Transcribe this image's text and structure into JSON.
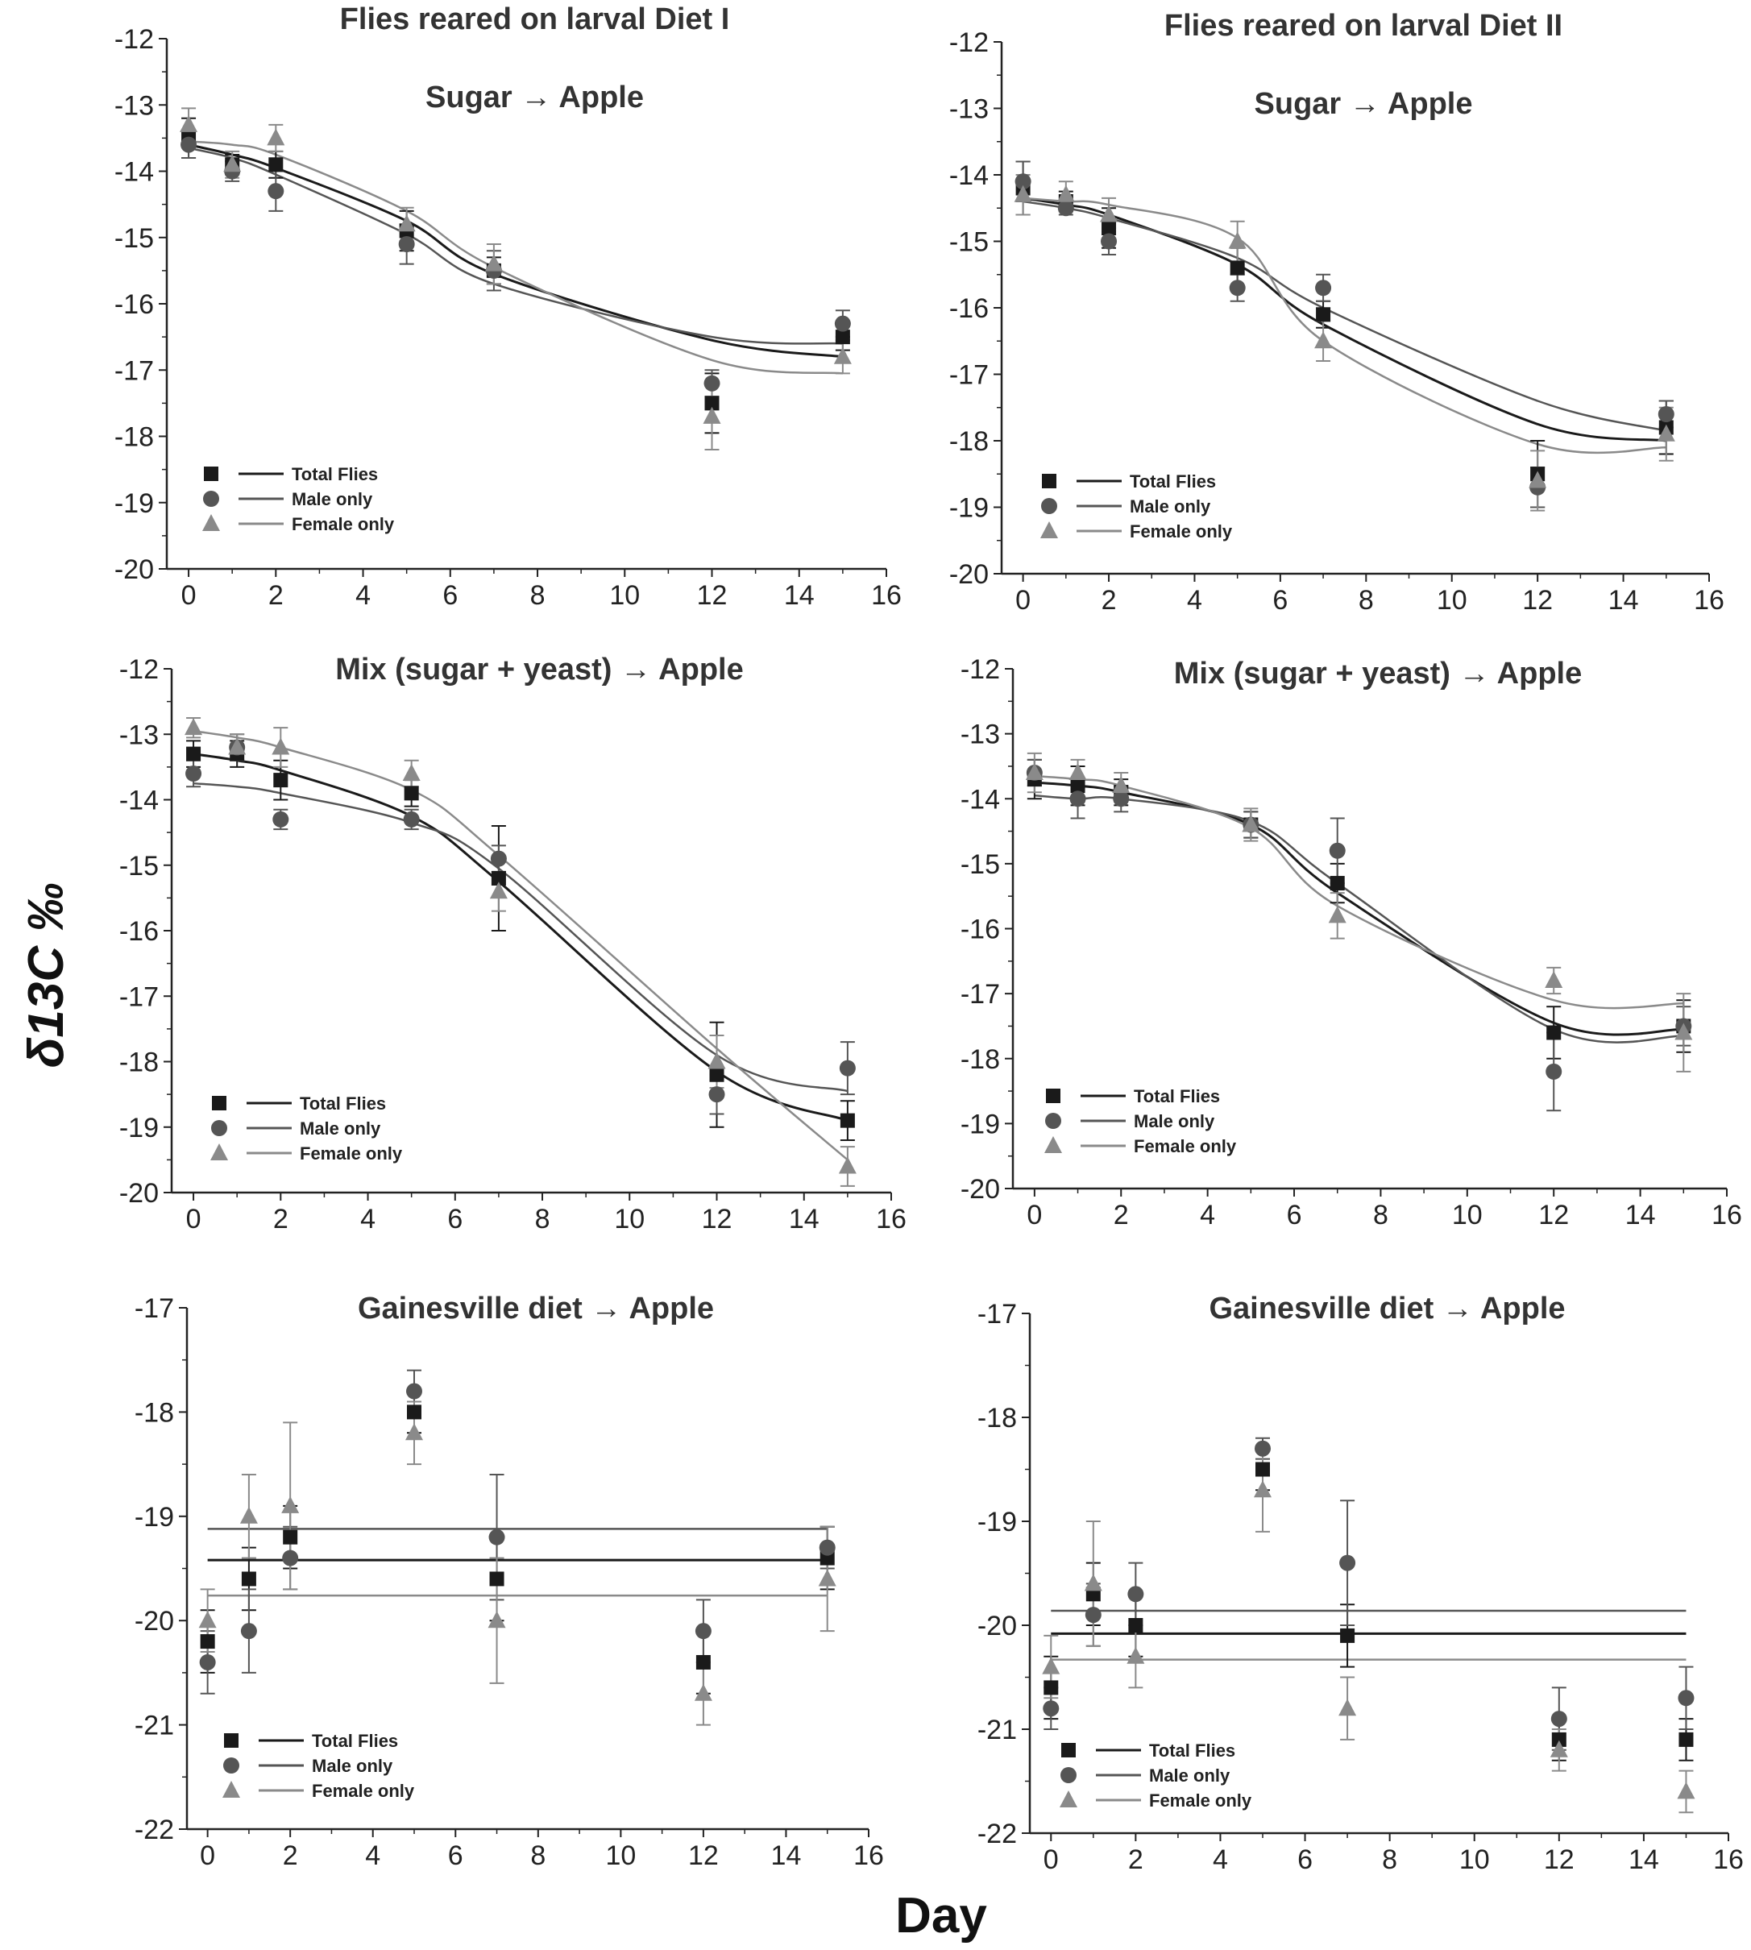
{
  "figure": {
    "ylabel": "δ13C ‰",
    "xlabel": "Day"
  },
  "chart_data": [
    {
      "type": "scatter",
      "title": "Flies reared on larval Diet I",
      "subtitle": "Sugar → Apple",
      "xlim": [
        -0.5,
        16
      ],
      "ylim": [
        -20,
        -12
      ],
      "xticks": [
        "0",
        "2",
        "4",
        "6",
        "8",
        "10",
        "12",
        "14",
        "16"
      ],
      "yticks": [
        "-12",
        "-13",
        "-14",
        "-15",
        "-16",
        "-17",
        "-18",
        "-19",
        "-20"
      ],
      "x": [
        0,
        1,
        2,
        5,
        7,
        12,
        15
      ],
      "series": [
        {
          "name": "Total Flies",
          "marker": "square",
          "color": "#1a1a1a",
          "values": [
            -13.5,
            -13.9,
            -13.9,
            -14.9,
            -15.5,
            -17.5,
            -16.5
          ],
          "errors": [
            0.3,
            0.15,
            0.2,
            0.3,
            0.2,
            0.45,
            0.2
          ],
          "fit": [
            -13.6,
            -13.75,
            -13.95,
            -14.75,
            -15.55,
            -16.55,
            -16.8
          ]
        },
        {
          "name": "Male only",
          "marker": "circle",
          "color": "#555555",
          "values": [
            -13.6,
            -14.0,
            -14.3,
            -15.1,
            -15.5,
            -17.2,
            -16.3
          ],
          "errors": [
            0.2,
            0.15,
            0.3,
            0.3,
            0.3,
            0.2,
            0.2
          ],
          "fit": [
            -13.65,
            -13.8,
            -14.05,
            -14.95,
            -15.7,
            -16.5,
            -16.6
          ]
        },
        {
          "name": "Female only",
          "marker": "triangle",
          "color": "#8a8a8a",
          "values": [
            -13.3,
            -13.9,
            -13.5,
            -14.8,
            -15.4,
            -17.7,
            -16.8
          ],
          "errors": [
            0.25,
            0.2,
            0.2,
            0.25,
            0.3,
            0.5,
            0.25
          ],
          "fit": [
            -13.55,
            -13.6,
            -13.75,
            -14.6,
            -15.45,
            -16.85,
            -17.05
          ]
        }
      ]
    },
    {
      "type": "scatter",
      "title": "Flies reared on larval Diet II",
      "subtitle": "Sugar → Apple",
      "xlim": [
        -0.5,
        16
      ],
      "ylim": [
        -20,
        -12
      ],
      "xticks": [
        "0",
        "2",
        "4",
        "6",
        "8",
        "10",
        "12",
        "14",
        "16"
      ],
      "yticks": [
        "-12",
        "-13",
        "-14",
        "-15",
        "-16",
        "-17",
        "-18",
        "-19",
        "-20"
      ],
      "x": [
        0,
        1,
        2,
        5,
        7,
        12,
        15
      ],
      "series": [
        {
          "name": "Total Flies",
          "marker": "square",
          "color": "#1a1a1a",
          "values": [
            -14.2,
            -14.4,
            -14.8,
            -15.4,
            -16.1,
            -18.5,
            -17.8
          ],
          "errors": [
            0.4,
            0.15,
            0.3,
            0.3,
            0.2,
            0.5,
            0.4
          ],
          "fit": [
            -14.35,
            -14.45,
            -14.6,
            -15.35,
            -16.25,
            -17.75,
            -18.0
          ]
        },
        {
          "name": "Male only",
          "marker": "circle",
          "color": "#555555",
          "values": [
            -14.1,
            -14.5,
            -15.0,
            -15.7,
            -15.7,
            -18.7,
            -17.6
          ],
          "errors": [
            0.3,
            0.1,
            0.2,
            0.2,
            0.2,
            0.3,
            0.2
          ],
          "fit": [
            -14.4,
            -14.5,
            -14.65,
            -15.25,
            -16.0,
            -17.4,
            -17.85
          ]
        },
        {
          "name": "Female only",
          "marker": "triangle",
          "color": "#8a8a8a",
          "values": [
            -14.3,
            -14.3,
            -14.6,
            -15.0,
            -16.5,
            -18.6,
            -17.9
          ],
          "errors": [
            0.3,
            0.2,
            0.25,
            0.3,
            0.3,
            0.45,
            0.4
          ],
          "fit": [
            -14.35,
            -14.4,
            -14.45,
            -14.95,
            -16.5,
            -18.05,
            -18.1
          ]
        }
      ]
    },
    {
      "type": "scatter",
      "title": "",
      "subtitle": "Mix (sugar + yeast) → Apple",
      "xlim": [
        -0.5,
        16
      ],
      "ylim": [
        -20,
        -12
      ],
      "xticks": [
        "0",
        "2",
        "4",
        "6",
        "8",
        "10",
        "12",
        "14",
        "16"
      ],
      "yticks": [
        "-12",
        "-13",
        "-14",
        "-15",
        "-16",
        "-17",
        "-18",
        "-19",
        "-20"
      ],
      "x": [
        0,
        1,
        2,
        5,
        7,
        12,
        15
      ],
      "series": [
        {
          "name": "Total Flies",
          "marker": "square",
          "color": "#1a1a1a",
          "values": [
            -13.3,
            -13.3,
            -13.7,
            -13.9,
            -15.2,
            -18.2,
            -18.9
          ],
          "errors": [
            0.2,
            0.2,
            0.3,
            0.2,
            0.8,
            0.8,
            0.3
          ],
          "fit": [
            -13.3,
            -13.4,
            -13.55,
            -14.25,
            -15.25,
            -18.15,
            -18.9
          ]
        },
        {
          "name": "Male only",
          "marker": "circle",
          "color": "#555555",
          "values": [
            -13.6,
            -13.2,
            -14.3,
            -14.3,
            -14.9,
            -18.5,
            -18.1
          ],
          "errors": [
            0.2,
            0.2,
            0.15,
            0.15,
            0.2,
            0.3,
            0.4
          ],
          "fit": [
            -13.75,
            -13.8,
            -13.9,
            -14.35,
            -15.05,
            -17.9,
            -18.45
          ]
        },
        {
          "name": "Female only",
          "marker": "triangle",
          "color": "#8a8a8a",
          "values": [
            -12.9,
            -13.2,
            -13.2,
            -13.6,
            -15.4,
            -18.0,
            -19.6
          ],
          "errors": [
            0.15,
            0.2,
            0.3,
            0.2,
            0.3,
            0.4,
            0.3
          ],
          "fit": [
            -12.95,
            -13.05,
            -13.2,
            -13.85,
            -14.85,
            -17.8,
            -19.5
          ]
        }
      ]
    },
    {
      "type": "scatter",
      "title": "",
      "subtitle": "Mix (sugar + yeast) → Apple",
      "xlim": [
        -0.5,
        16
      ],
      "ylim": [
        -20,
        -12
      ],
      "xticks": [
        "0",
        "2",
        "4",
        "6",
        "8",
        "10",
        "12",
        "14",
        "16"
      ],
      "yticks": [
        "-12",
        "-13",
        "-14",
        "-15",
        "-16",
        "-17",
        "-18",
        "-19",
        "-20"
      ],
      "x": [
        0,
        1,
        2,
        5,
        7,
        12,
        15
      ],
      "series": [
        {
          "name": "Total Flies",
          "marker": "square",
          "color": "#1a1a1a",
          "values": [
            -13.7,
            -13.8,
            -13.9,
            -14.4,
            -15.3,
            -17.6,
            -17.5
          ],
          "errors": [
            0.3,
            0.3,
            0.2,
            0.2,
            0.3,
            0.4,
            0.4
          ],
          "fit": [
            -13.75,
            -13.8,
            -13.9,
            -14.4,
            -15.45,
            -17.45,
            -17.55
          ]
        },
        {
          "name": "Male only",
          "marker": "circle",
          "color": "#555555",
          "values": [
            -13.6,
            -14.0,
            -14.0,
            -14.4,
            -14.8,
            -18.2,
            -17.5
          ],
          "errors": [
            0.2,
            0.3,
            0.2,
            0.2,
            0.5,
            0.6,
            0.3
          ],
          "fit": [
            -13.95,
            -14.0,
            -14.0,
            -14.35,
            -15.3,
            -17.55,
            -17.65
          ]
        },
        {
          "name": "Female only",
          "marker": "triangle",
          "color": "#8a8a8a",
          "values": [
            -13.6,
            -13.6,
            -13.8,
            -14.4,
            -15.8,
            -16.8,
            -17.6
          ],
          "errors": [
            0.3,
            0.2,
            0.2,
            0.25,
            0.35,
            0.2,
            0.6
          ],
          "fit": [
            -13.65,
            -13.7,
            -13.8,
            -14.45,
            -15.65,
            -17.1,
            -17.15
          ]
        }
      ]
    },
    {
      "type": "scatter",
      "title": "",
      "subtitle": "Gainesville diet → Apple",
      "xlim": [
        -0.5,
        16
      ],
      "ylim": [
        -22,
        -17
      ],
      "xticks": [
        "0",
        "2",
        "4",
        "6",
        "8",
        "10",
        "12",
        "14",
        "16"
      ],
      "yticks": [
        "-17",
        "-18",
        "-19",
        "-20",
        "-21",
        "-22"
      ],
      "x": [
        0,
        1,
        2,
        5,
        7,
        12,
        15
      ],
      "series": [
        {
          "name": "Total Flies",
          "marker": "square",
          "color": "#1a1a1a",
          "values": [
            -20.2,
            -19.6,
            -19.2,
            -18.0,
            -19.6,
            -20.4,
            -19.4
          ],
          "errors": [
            0.3,
            0.3,
            0.3,
            0.2,
            0.4,
            0.3,
            0.3
          ],
          "fit_flat": -19.42
        },
        {
          "name": "Male only",
          "marker": "circle",
          "color": "#555555",
          "values": [
            -20.4,
            -20.1,
            -19.4,
            -17.8,
            -19.2,
            -20.1,
            -19.3
          ],
          "errors": [
            0.3,
            0.4,
            0.3,
            0.2,
            0.6,
            0.3,
            0.2
          ],
          "fit_flat": -19.12
        },
        {
          "name": "Female only",
          "marker": "triangle",
          "color": "#8a8a8a",
          "values": [
            -20.0,
            -19.0,
            -18.9,
            -18.2,
            -20.0,
            -20.7,
            -19.6
          ],
          "errors": [
            0.3,
            0.4,
            0.8,
            0.3,
            0.6,
            0.3,
            0.5
          ],
          "fit_flat": -19.76
        }
      ]
    },
    {
      "type": "scatter",
      "title": "",
      "subtitle": "Gainesville diet → Apple",
      "xlim": [
        -0.5,
        16
      ],
      "ylim": [
        -22,
        -17
      ],
      "xticks": [
        "0",
        "2",
        "4",
        "6",
        "8",
        "10",
        "12",
        "14",
        "16"
      ],
      "yticks": [
        "-17",
        "-18",
        "-19",
        "-20",
        "-21",
        "-22"
      ],
      "x": [
        0,
        1,
        2,
        5,
        7,
        12,
        15
      ],
      "series": [
        {
          "name": "Total Flies",
          "marker": "square",
          "color": "#1a1a1a",
          "values": [
            -20.6,
            -19.7,
            -20.0,
            -18.5,
            -20.1,
            -21.1,
            -21.1
          ],
          "errors": [
            0.3,
            0.3,
            0.3,
            0.2,
            0.3,
            0.2,
            0.2
          ],
          "fit_flat": -20.08
        },
        {
          "name": "Male only",
          "marker": "circle",
          "color": "#555555",
          "values": [
            -20.8,
            -19.9,
            -19.7,
            -18.3,
            -19.4,
            -20.9,
            -20.7
          ],
          "errors": [
            0.2,
            0.3,
            0.3,
            0.1,
            0.6,
            0.3,
            0.3
          ],
          "fit_flat": -19.86
        },
        {
          "name": "Female only",
          "marker": "triangle",
          "color": "#8a8a8a",
          "values": [
            -20.4,
            -19.6,
            -20.3,
            -18.7,
            -20.8,
            -21.2,
            -21.6
          ],
          "errors": [
            0.3,
            0.6,
            0.3,
            0.4,
            0.3,
            0.2,
            0.2
          ],
          "fit_flat": -20.33
        }
      ]
    }
  ]
}
